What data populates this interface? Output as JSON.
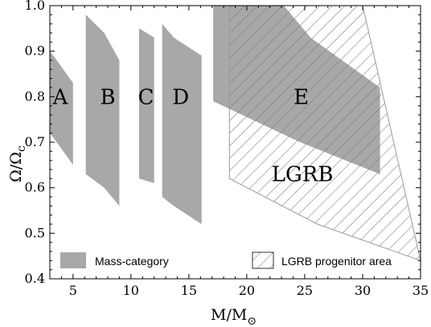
{
  "chart_data": {
    "type": "area",
    "xlabel": "M/M",
    "xlabel_sub": "⊙",
    "ylabel": "Ω/Ω",
    "ylabel_sub": "c",
    "xlim": [
      3,
      35
    ],
    "ylim": [
      0.4,
      1.0
    ],
    "x_ticks": [
      5,
      10,
      15,
      20,
      25,
      30,
      35
    ],
    "y_ticks": [
      0.4,
      0.5,
      0.6,
      0.7,
      0.8,
      0.9,
      1.0
    ],
    "x_tick_labels": [
      "5",
      "10",
      "15",
      "20",
      "25",
      "30",
      "35"
    ],
    "y_tick_labels": [
      "0.4",
      "0.5",
      "0.6",
      "0.7",
      "0.8",
      "0.9",
      "1.0"
    ],
    "grid": false,
    "legend_position": "bottom",
    "legend": [
      {
        "label": "Mass-category",
        "style": "solid-gray"
      },
      {
        "label": "LGRB progenitor area",
        "style": "hatched"
      }
    ],
    "colors": {
      "mass_category": "#a8a8a8",
      "hatch": "#777777",
      "axis": "#000000"
    },
    "mass_categories": [
      {
        "name": "A",
        "label_at": [
          3.9,
          0.8
        ],
        "polygon": [
          [
            3,
            0.9
          ],
          [
            3.6,
            0.88
          ],
          [
            5,
            0.83
          ],
          [
            5,
            0.65
          ],
          [
            3.6,
            0.7
          ],
          [
            3,
            0.72
          ]
        ]
      },
      {
        "name": "B",
        "label_at": [
          8.0,
          0.8
        ],
        "polygon": [
          [
            6.1,
            0.98
          ],
          [
            7.7,
            0.94
          ],
          [
            9.0,
            0.88
          ],
          [
            9.0,
            0.56
          ],
          [
            7.7,
            0.6
          ],
          [
            6.1,
            0.63
          ]
        ]
      },
      {
        "name": "C",
        "label_at": [
          11.3,
          0.8
        ],
        "polygon": [
          [
            10.7,
            0.95
          ],
          [
            12.0,
            0.93
          ],
          [
            12.0,
            0.61
          ],
          [
            10.7,
            0.62
          ]
        ]
      },
      {
        "name": "D",
        "label_at": [
          14.3,
          0.8
        ],
        "polygon": [
          [
            12.7,
            0.96
          ],
          [
            13.7,
            0.93
          ],
          [
            16.1,
            0.89
          ],
          [
            16.1,
            0.52
          ],
          [
            13.7,
            0.56
          ],
          [
            12.7,
            0.58
          ]
        ]
      },
      {
        "name": "E",
        "label_at": [
          24.7,
          0.8
        ],
        "polygon": [
          [
            17.1,
            1.0
          ],
          [
            23.2,
            1.0
          ],
          [
            25.5,
            0.93
          ],
          [
            31.5,
            0.82
          ],
          [
            31.5,
            0.63
          ],
          [
            24.6,
            0.7
          ],
          [
            17.1,
            0.79
          ]
        ]
      }
    ],
    "lgrb_area": {
      "label": "LGRB",
      "label_at": [
        24.8,
        0.63
      ],
      "polygon": [
        [
          18.5,
          1.0
        ],
        [
          30.0,
          1.0
        ],
        [
          35.0,
          0.44
        ],
        [
          26.1,
          0.52
        ],
        [
          18.5,
          0.62
        ]
      ]
    }
  }
}
